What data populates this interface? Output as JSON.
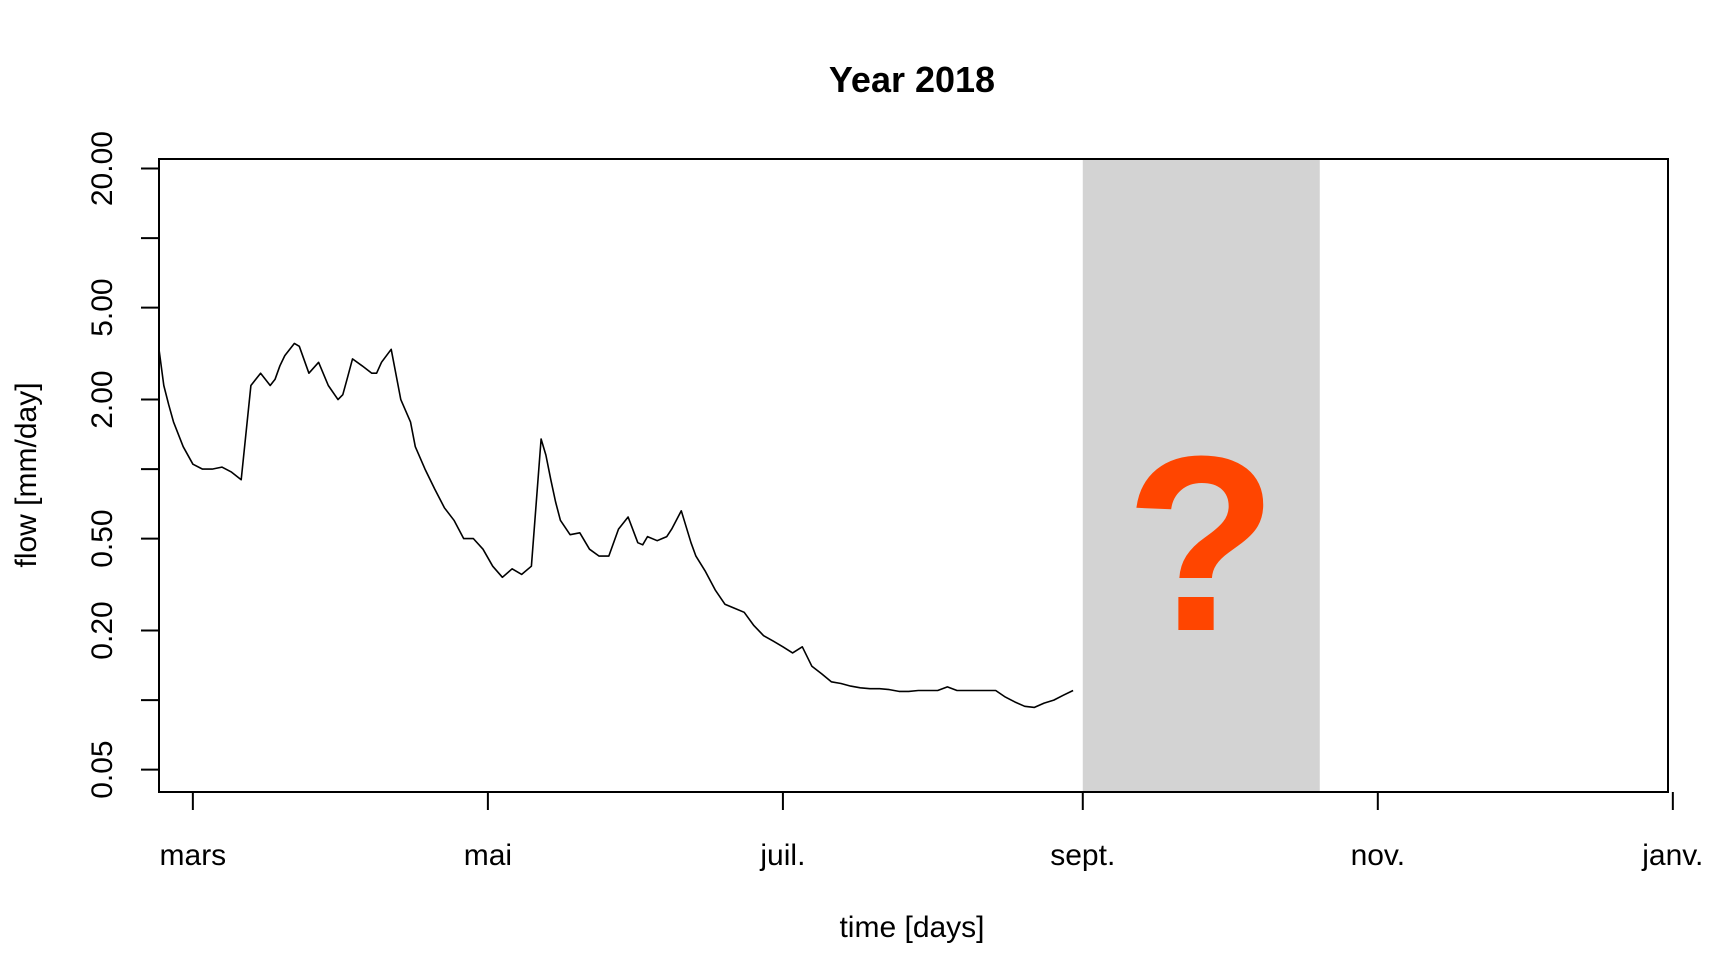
{
  "chart_data": {
    "type": "line",
    "title": "Year 2018",
    "xlabel": "time [days]",
    "ylabel": "flow [mm/day]",
    "y_scale": "log",
    "xlim": [
      "2018-02-22",
      "2018-12-31"
    ],
    "ylim": [
      0.04,
      22
    ],
    "x_ticks": [
      {
        "date": "2018-03-01",
        "label": "mars"
      },
      {
        "date": "2018-05-01",
        "label": "mai"
      },
      {
        "date": "2018-07-01",
        "label": "juil."
      },
      {
        "date": "2018-09-01",
        "label": "sept."
      },
      {
        "date": "2018-11-01",
        "label": "nov."
      },
      {
        "date": "2019-01-01",
        "label": "janv."
      }
    ],
    "y_ticks": [
      {
        "value": 20,
        "label": "20.00"
      },
      {
        "value": 10,
        "label": ""
      },
      {
        "value": 5,
        "label": "5.00"
      },
      {
        "value": 2,
        "label": "2.00"
      },
      {
        "value": 1,
        "label": ""
      },
      {
        "value": 0.5,
        "label": "0.50"
      },
      {
        "value": 0.2,
        "label": "0.20"
      },
      {
        "value": 0.1,
        "label": ""
      },
      {
        "value": 0.05,
        "label": "0.05"
      }
    ],
    "shaded_region": {
      "start": "2018-09-01",
      "end": "2018-10-20",
      "color": "#d3d3d3",
      "label": "?",
      "label_color": "#ff4500"
    },
    "grid": false,
    "legend": "none",
    "series": [
      {
        "color": "#000000",
        "x": [
          "2018-02-22",
          "2018-02-23",
          "2018-02-24",
          "2018-02-25",
          "2018-02-27",
          "2018-03-01",
          "2018-03-03",
          "2018-03-05",
          "2018-03-07",
          "2018-03-09",
          "2018-03-11",
          "2018-03-13",
          "2018-03-15",
          "2018-03-17",
          "2018-03-18",
          "2018-03-19",
          "2018-03-20",
          "2018-03-22",
          "2018-03-23",
          "2018-03-25",
          "2018-03-27",
          "2018-03-29",
          "2018-03-31",
          "2018-04-01",
          "2018-04-02",
          "2018-04-03",
          "2018-04-05",
          "2018-04-07",
          "2018-04-08",
          "2018-04-09",
          "2018-04-11",
          "2018-04-13",
          "2018-04-15",
          "2018-04-16",
          "2018-04-18",
          "2018-04-20",
          "2018-04-22",
          "2018-04-24",
          "2018-04-26",
          "2018-04-28",
          "2018-04-30",
          "2018-05-02",
          "2018-05-04",
          "2018-05-06",
          "2018-05-08",
          "2018-05-10",
          "2018-05-12",
          "2018-05-13",
          "2018-05-14",
          "2018-05-15",
          "2018-05-16",
          "2018-05-18",
          "2018-05-20",
          "2018-05-22",
          "2018-05-24",
          "2018-05-26",
          "2018-05-28",
          "2018-05-30",
          "2018-06-01",
          "2018-06-02",
          "2018-06-03",
          "2018-06-05",
          "2018-06-06",
          "2018-06-07",
          "2018-06-08",
          "2018-06-10",
          "2018-06-12",
          "2018-06-13",
          "2018-06-15",
          "2018-06-17",
          "2018-06-19",
          "2018-06-21",
          "2018-06-23",
          "2018-06-25",
          "2018-06-27",
          "2018-06-29",
          "2018-07-01",
          "2018-07-03",
          "2018-07-05",
          "2018-07-07",
          "2018-07-09",
          "2018-07-11",
          "2018-07-13",
          "2018-07-15",
          "2018-07-17",
          "2018-07-19",
          "2018-07-21",
          "2018-07-23",
          "2018-07-25",
          "2018-07-27",
          "2018-07-29",
          "2018-07-31",
          "2018-08-02",
          "2018-08-04",
          "2018-08-06",
          "2018-08-08",
          "2018-08-10",
          "2018-08-12",
          "2018-08-14",
          "2018-08-16",
          "2018-08-18",
          "2018-08-20",
          "2018-08-22",
          "2018-08-24",
          "2018-08-26",
          "2018-08-28",
          "2018-08-30"
        ],
        "y": [
          3.3,
          2.3,
          1.9,
          1.6,
          1.25,
          1.05,
          1.0,
          1.0,
          1.02,
          0.97,
          0.9,
          2.3,
          2.6,
          2.3,
          2.45,
          2.8,
          3.1,
          3.5,
          3.4,
          2.6,
          2.9,
          2.3,
          2.0,
          2.1,
          2.5,
          3.0,
          2.8,
          2.6,
          2.6,
          2.9,
          3.3,
          2.0,
          1.6,
          1.25,
          1.0,
          0.82,
          0.68,
          0.6,
          0.5,
          0.5,
          0.45,
          0.38,
          0.34,
          0.37,
          0.35,
          0.38,
          1.35,
          1.15,
          0.9,
          0.72,
          0.6,
          0.52,
          0.53,
          0.45,
          0.42,
          0.42,
          0.55,
          0.62,
          0.48,
          0.47,
          0.51,
          0.49,
          0.5,
          0.51,
          0.55,
          0.66,
          0.48,
          0.42,
          0.36,
          0.3,
          0.26,
          0.25,
          0.24,
          0.21,
          0.19,
          0.18,
          0.17,
          0.16,
          0.17,
          0.14,
          0.13,
          0.12,
          0.118,
          0.115,
          0.113,
          0.112,
          0.112,
          0.111,
          0.109,
          0.109,
          0.11,
          0.11,
          0.11,
          0.114,
          0.11,
          0.11,
          0.11,
          0.11,
          0.11,
          0.103,
          0.098,
          0.094,
          0.093,
          0.097,
          0.1,
          0.105,
          0.11
        ]
      }
    ]
  }
}
